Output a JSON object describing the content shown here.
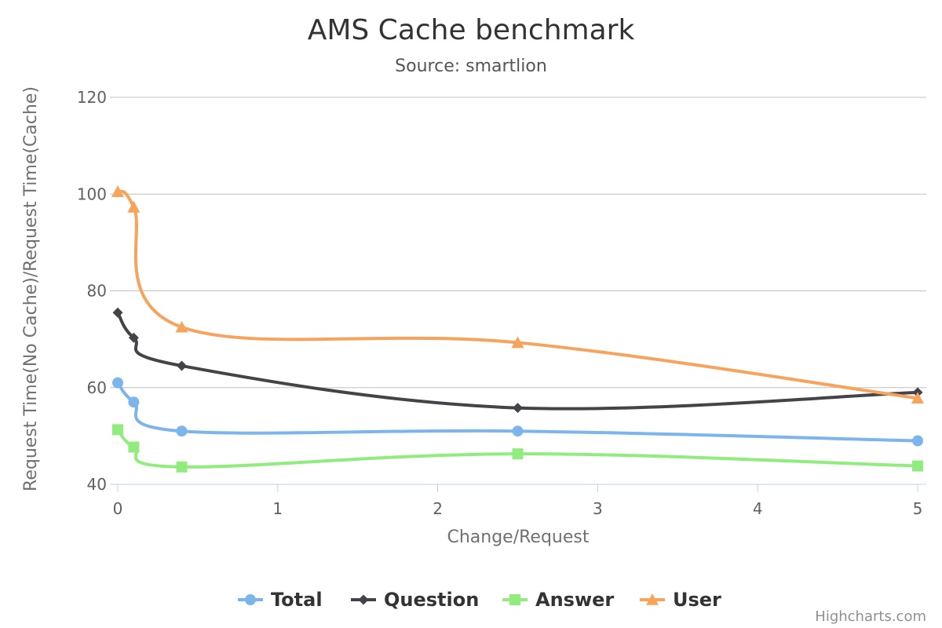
{
  "chart_data": {
    "type": "line",
    "title": "AMS Cache benchmark",
    "subtitle": "Source: smartlion",
    "xlabel": "Change/Request",
    "ylabel": "Request Time(No Cache)/Request Time(Cache)",
    "xlim": [
      0,
      5
    ],
    "ylim": [
      40,
      120
    ],
    "x_ticks": [
      "0",
      "1",
      "2",
      "3",
      "4",
      "5"
    ],
    "y_ticks": [
      "40",
      "60",
      "80",
      "100",
      "120"
    ],
    "x_tick_values": [
      0,
      1,
      2,
      3,
      4,
      5
    ],
    "y_tick_values": [
      40,
      60,
      80,
      100,
      120
    ],
    "grid": true,
    "legend_position": "bottom-center",
    "series": [
      {
        "name": "Total",
        "color": "#7cb5ec",
        "marker": "circle",
        "x": [
          0,
          0.1,
          0.4,
          2.5,
          5
        ],
        "values": [
          61,
          57,
          51,
          51,
          49
        ]
      },
      {
        "name": "Question",
        "color": "#434348",
        "marker": "diamond",
        "x": [
          0,
          0.1,
          0.4,
          2.5,
          5
        ],
        "values": [
          75.5,
          70.3,
          64.5,
          55.8,
          59
        ]
      },
      {
        "name": "Answer",
        "color": "#90ed7d",
        "marker": "square",
        "x": [
          0,
          0.1,
          0.4,
          2.5,
          5
        ],
        "values": [
          51.3,
          47.7,
          43.6,
          46.3,
          43.8
        ]
      },
      {
        "name": "User",
        "color": "#f7a35c",
        "marker": "triangle",
        "x": [
          0,
          0.1,
          0.4,
          2.5,
          5
        ],
        "values": [
          100.5,
          97.3,
          72.5,
          69.3,
          57.8
        ]
      }
    ],
    "credits": "Highcharts.com"
  }
}
